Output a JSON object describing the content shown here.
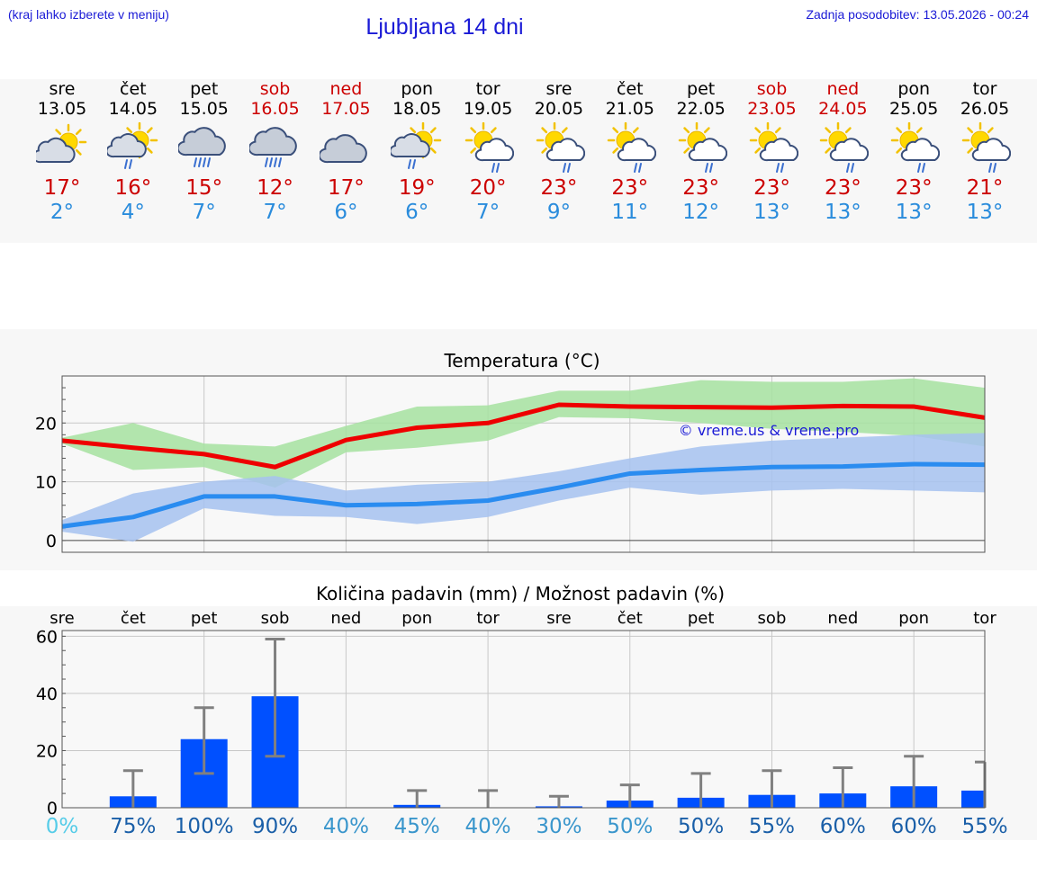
{
  "header": {
    "left_note": "(kraj lahko izberete v meniju)",
    "title": "Ljubljana 14 dni",
    "last_update": "Zadnja posodobitev: 13.05.2026 - 00:24"
  },
  "colors": {
    "title": "#1a1ad6",
    "weekend": "#cc0000",
    "tmax_line": "#ee0000",
    "tmin_line": "#2a8cf0",
    "tmax_band": "#a6e2a0",
    "tmin_band": "#a6c2f0",
    "bar": "#0050ff",
    "errorbar": "#808080"
  },
  "forecast": [
    {
      "day": "sre",
      "date": "13.05",
      "weekend": false,
      "icon": "sun-cloud-icon",
      "tmax": "17°",
      "tmin": "2°"
    },
    {
      "day": "čet",
      "date": "14.05",
      "weekend": false,
      "icon": "sun-cloud-rain-icon",
      "tmax": "16°",
      "tmin": "4°"
    },
    {
      "day": "pet",
      "date": "15.05",
      "weekend": false,
      "icon": "cloud-heavy-rain-icon",
      "tmax": "15°",
      "tmin": "7°"
    },
    {
      "day": "sob",
      "date": "16.05",
      "weekend": true,
      "icon": "cloud-heavy-rain-icon",
      "tmax": "12°",
      "tmin": "7°"
    },
    {
      "day": "ned",
      "date": "17.05",
      "weekend": true,
      "icon": "cloud-icon",
      "tmax": "17°",
      "tmin": "6°"
    },
    {
      "day": "pon",
      "date": "18.05",
      "weekend": false,
      "icon": "sun-cloud-rain-icon",
      "tmax": "19°",
      "tmin": "6°"
    },
    {
      "day": "tor",
      "date": "19.05",
      "weekend": false,
      "icon": "sun-small-cloud-rain-icon",
      "tmax": "20°",
      "tmin": "7°"
    },
    {
      "day": "sre",
      "date": "20.05",
      "weekend": false,
      "icon": "sun-small-cloud-rain-icon",
      "tmax": "23°",
      "tmin": "9°"
    },
    {
      "day": "čet",
      "date": "21.05",
      "weekend": false,
      "icon": "sun-small-cloud-rain-icon",
      "tmax": "23°",
      "tmin": "11°"
    },
    {
      "day": "pet",
      "date": "22.05",
      "weekend": false,
      "icon": "sun-small-cloud-rain-icon",
      "tmax": "23°",
      "tmin": "12°"
    },
    {
      "day": "sob",
      "date": "23.05",
      "weekend": true,
      "icon": "sun-small-cloud-rain-icon",
      "tmax": "23°",
      "tmin": "13°"
    },
    {
      "day": "ned",
      "date": "24.05",
      "weekend": true,
      "icon": "sun-small-cloud-rain-icon",
      "tmax": "23°",
      "tmin": "13°"
    },
    {
      "day": "pon",
      "date": "25.05",
      "weekend": false,
      "icon": "sun-small-cloud-rain-icon",
      "tmax": "23°",
      "tmin": "13°"
    },
    {
      "day": "tor",
      "date": "26.05",
      "weekend": false,
      "icon": "sun-small-cloud-rain-icon",
      "tmax": "21°",
      "tmin": "13°"
    }
  ],
  "chart_data": [
    {
      "type": "line",
      "title": "Temperatura (°C)",
      "watermark": "© vreme.us & vreme.pro",
      "x": [
        "13.05",
        "14.05",
        "15.05",
        "16.05",
        "17.05",
        "18.05",
        "19.05",
        "20.05",
        "21.05",
        "22.05",
        "23.05",
        "24.05",
        "25.05",
        "26.05"
      ],
      "ylim": [
        -2,
        28
      ],
      "yticks": [
        "0",
        "10",
        "20"
      ],
      "grid": true,
      "series": [
        {
          "key": "tmax",
          "values": [
            17,
            15.8,
            14.7,
            12.5,
            17.1,
            19.2,
            20,
            23.1,
            22.8,
            22.7,
            22.6,
            22.9,
            22.8,
            20.9
          ],
          "band_low": [
            16.5,
            12,
            12.5,
            9,
            15,
            15.8,
            17,
            21,
            20.8,
            20,
            19,
            18.5,
            17.8,
            16
          ],
          "band_high": [
            17.5,
            20,
            16.5,
            16,
            19.5,
            22.8,
            23,
            25.5,
            25.5,
            27.3,
            27,
            27,
            27.6,
            26
          ]
        },
        {
          "key": "tmin",
          "values": [
            2.4,
            4,
            7.5,
            7.5,
            6,
            6.2,
            6.8,
            9,
            11.4,
            12,
            12.5,
            12.6,
            13,
            12.9
          ],
          "band_low": [
            1.5,
            -0.2,
            5.5,
            4.2,
            4,
            2.8,
            4,
            6.8,
            9,
            7.8,
            8.5,
            8.8,
            8.5,
            8.2
          ],
          "band_high": [
            3.5,
            8,
            10,
            11,
            8.5,
            9.5,
            10,
            11.8,
            14,
            16,
            17,
            17.5,
            18,
            18.3
          ]
        }
      ]
    },
    {
      "type": "bar",
      "title": "Količina padavin (mm) / Možnost padavin (%)",
      "categories": [
        "sre",
        "čet",
        "pet",
        "sob",
        "ned",
        "pon",
        "tor",
        "sre",
        "čet",
        "pet",
        "sob",
        "ned",
        "pon",
        "tor"
      ],
      "values": [
        0,
        4,
        24,
        39,
        0,
        1,
        0,
        0.5,
        2.5,
        3.5,
        4.5,
        5,
        7.5,
        6
      ],
      "error_high": [
        0,
        13,
        35,
        59,
        0,
        6,
        6,
        4,
        8,
        12,
        13,
        14,
        18,
        16
      ],
      "error_low": [
        0,
        0,
        12,
        18,
        0,
        0,
        0,
        0,
        0,
        0,
        0,
        0,
        0,
        0
      ],
      "probability": [
        "0%",
        "75%",
        "100%",
        "90%",
        "40%",
        "45%",
        "40%",
        "30%",
        "50%",
        "50%",
        "55%",
        "60%",
        "60%",
        "55%"
      ],
      "probability_colors": [
        "#56cce8",
        "#1a5fa8",
        "#1a5fa8",
        "#1a5fa8",
        "#3a96cc",
        "#3a96cc",
        "#3a96cc",
        "#3a96cc",
        "#3a96cc",
        "#1a5fa8",
        "#1a5fa8",
        "#1a5fa8",
        "#1a5fa8",
        "#1a5fa8"
      ],
      "ylim": [
        0,
        62
      ],
      "yticks": [
        "0",
        "20",
        "40",
        "60"
      ],
      "grid": true
    }
  ]
}
